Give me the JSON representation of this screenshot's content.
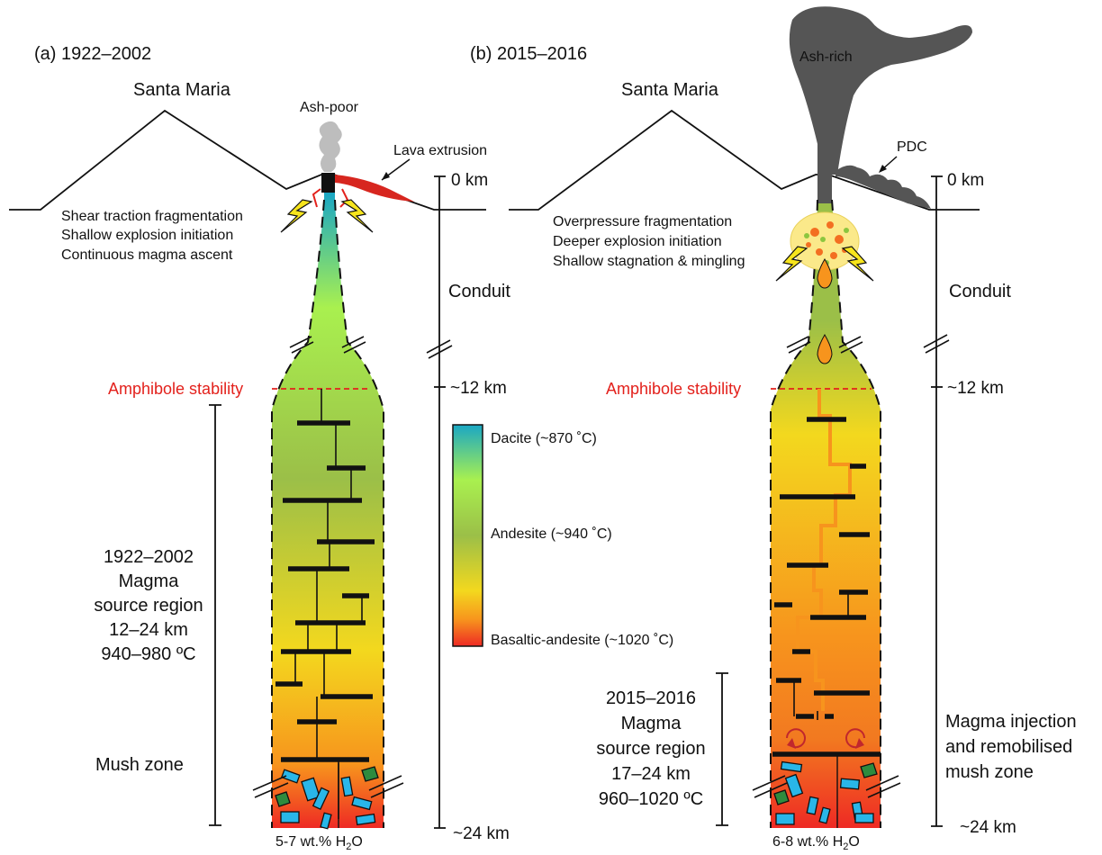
{
  "colors": {
    "dacite": "#1aa7c4",
    "andesite_light": "#a9f04f",
    "andesite": "#9bbf48",
    "yellow": "#f3d81e",
    "orange": "#f7941d",
    "basaltic": "#ee2a24",
    "amphibole_line": "#e3211c",
    "ash_rich": "#555555",
    "ash_poor": "#bdbdbd",
    "dyke_orange": "#f7941d",
    "crystal_blue": "#29b6e8",
    "crystal_green": "#2e8b3e"
  },
  "panel_a": {
    "title": "(a) 1922–2002",
    "volcano": "Santa Maria",
    "plume": "Ash-poor",
    "lava_label": "Lava extrusion",
    "fragmentation": [
      "Shear traction fragmentation",
      "Shallow explosion initiation",
      "Continuous magma ascent"
    ],
    "amphibole": "Amphibole stability",
    "source_region": [
      "1922–2002",
      "Magma",
      "source region",
      "12–24 km",
      "940–980 ºC"
    ],
    "mush": "Mush zone",
    "water": "5-7 wt.% H",
    "water_sub": "2",
    "water_tail": "O",
    "depth_0": "0 km",
    "depth_conduit": "Conduit",
    "depth_12": "~12 km",
    "depth_24": "~24 km"
  },
  "panel_b": {
    "title": "(b) 2015–2016",
    "volcano": "Santa Maria",
    "plume": "Ash-rich",
    "pdc_label": "PDC",
    "fragmentation": [
      "Overpressure fragmentation",
      "Deeper explosion initiation",
      "Shallow stagnation & mingling"
    ],
    "amphibole": "Amphibole stability",
    "source_region": [
      "2015–2016",
      "Magma",
      "source region",
      "17–24 km",
      "960–1020 ºC"
    ],
    "injection": [
      "Magma injection",
      "and remobilised",
      "mush zone"
    ],
    "water": "6-8 wt.% H",
    "water_sub": "2",
    "water_tail": "O",
    "depth_0": "0 km",
    "depth_conduit": "Conduit",
    "depth_12": "~12 km",
    "depth_24": "~24 km"
  },
  "legend": {
    "dacite": "Dacite (~870 ˚C)",
    "andesite": "Andesite (~940 ˚C)",
    "basaltic": "Basaltic-andesite (~1020 ˚C)"
  }
}
